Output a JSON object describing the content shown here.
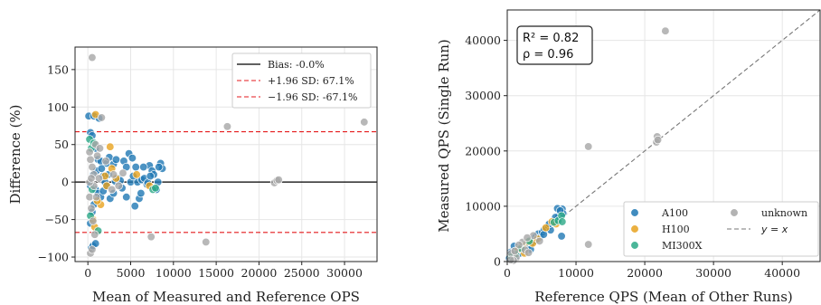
{
  "chart_data": [
    {
      "type": "scatter",
      "subtype": "bland-altman",
      "xlabel": "Mean of Measured and Reference OPS",
      "ylabel": "Difference (%)",
      "xlim": [
        -1500,
        33800
      ],
      "ylim": [
        -106,
        180
      ],
      "xticks": [
        0,
        5000,
        10000,
        15000,
        20000,
        25000,
        30000
      ],
      "yticks": [
        -100,
        -50,
        0,
        50,
        100,
        150
      ],
      "ytick_labels": [
        "−100",
        "−50",
        "0",
        "50",
        "100",
        "150"
      ],
      "grid": true,
      "legend_position": "top-right",
      "lines": [
        {
          "name": "Bias: -0.0%",
          "y": 0,
          "style": "solid",
          "color": "#000000"
        },
        {
          "name": "+1.96 SD: 67.1%",
          "y": 67.1,
          "style": "dashed",
          "color": "#e41a1c"
        },
        {
          "name": "−1.96 SD: -67.1%",
          "y": -67.1,
          "style": "dashed",
          "color": "#e41a1c"
        }
      ],
      "series": [
        {
          "group": "A100",
          "color": "#1f78b4",
          "points": [
            [
              100,
              88
            ],
            [
              700,
              88
            ],
            [
              1300,
              85
            ],
            [
              300,
              66
            ],
            [
              500,
              62
            ],
            [
              900,
              45
            ],
            [
              1200,
              30
            ],
            [
              1500,
              28
            ],
            [
              1800,
              8
            ],
            [
              2000,
              0
            ],
            [
              2200,
              25
            ],
            [
              2500,
              33
            ],
            [
              3000,
              24
            ],
            [
              3200,
              1
            ],
            [
              3500,
              5
            ],
            [
              3800,
              2
            ],
            [
              4200,
              28
            ],
            [
              4500,
              20
            ],
            [
              4800,
              38
            ],
            [
              5000,
              0
            ],
            [
              5200,
              32
            ],
            [
              5500,
              -32
            ],
            [
              5800,
              0
            ],
            [
              6000,
              -22
            ],
            [
              6300,
              3
            ],
            [
              6600,
              5
            ],
            [
              6900,
              -3
            ],
            [
              7200,
              22
            ],
            [
              7500,
              15
            ],
            [
              7700,
              10
            ],
            [
              8000,
              -10
            ],
            [
              8200,
              0
            ],
            [
              8500,
              25
            ],
            [
              8700,
              18
            ],
            [
              300,
              -5
            ],
            [
              600,
              10
            ],
            [
              900,
              -10
            ],
            [
              1200,
              -15
            ],
            [
              400,
              -88
            ],
            [
              600,
              -85
            ],
            [
              900,
              -82
            ],
            [
              300,
              -55
            ],
            [
              500,
              -40
            ],
            [
              700,
              -30
            ],
            [
              1500,
              -20
            ],
            [
              1800,
              -12
            ],
            [
              2200,
              -5
            ],
            [
              2600,
              -22
            ],
            [
              3000,
              -15
            ],
            [
              4000,
              -8
            ],
            [
              5300,
              8
            ],
            [
              6200,
              -15
            ],
            [
              7000,
              -1
            ],
            [
              1000,
              15
            ],
            [
              1600,
              18
            ],
            [
              2400,
              10
            ],
            [
              3300,
              30
            ],
            [
              4500,
              -20
            ],
            [
              5600,
              20
            ],
            [
              6500,
              20
            ],
            [
              7300,
              8
            ],
            [
              8300,
              20
            ]
          ]
        },
        {
          "group": "H100",
          "color": "#e8a21e",
          "points": [
            [
              900,
              90
            ],
            [
              2600,
              47
            ],
            [
              2800,
              18
            ],
            [
              1500,
              -30
            ],
            [
              2200,
              -5
            ],
            [
              3300,
              5
            ],
            [
              5700,
              10
            ],
            [
              7200,
              -5
            ],
            [
              800,
              -60
            ],
            [
              600,
              -50
            ],
            [
              1100,
              -25
            ],
            [
              2000,
              8
            ]
          ]
        },
        {
          "group": "MI300X",
          "color": "#2ca987",
          "points": [
            [
              200,
              57
            ],
            [
              400,
              45
            ],
            [
              700,
              52
            ],
            [
              7600,
              -10
            ],
            [
              7900,
              -8
            ],
            [
              300,
              -45
            ],
            [
              500,
              -10
            ],
            [
              1200,
              -65
            ]
          ]
        },
        {
          "group": "unknown",
          "color": "#a6a6a6",
          "points": [
            [
              500,
              166
            ],
            [
              1600,
              86
            ],
            [
              16300,
              74
            ],
            [
              32300,
              80
            ],
            [
              13800,
              -80
            ],
            [
              7400,
              -73
            ],
            [
              21800,
              -1
            ],
            [
              22100,
              2
            ],
            [
              22300,
              3
            ],
            [
              200,
              40
            ],
            [
              300,
              30
            ],
            [
              500,
              20
            ],
            [
              700,
              10
            ],
            [
              200,
              -20
            ],
            [
              400,
              -35
            ],
            [
              600,
              -52
            ],
            [
              800,
              -70
            ],
            [
              300,
              -95
            ],
            [
              500,
              -90
            ],
            [
              900,
              50
            ],
            [
              1100,
              35
            ],
            [
              1400,
              45
            ],
            [
              2100,
              28
            ],
            [
              2800,
              -10
            ],
            [
              3600,
              -5
            ],
            [
              4100,
              12
            ],
            [
              1000,
              -20
            ],
            [
              1300,
              5
            ],
            [
              700,
              -5
            ],
            [
              200,
              0
            ],
            [
              400,
              5
            ],
            [
              3000,
              10
            ]
          ]
        }
      ]
    },
    {
      "type": "scatter",
      "xlabel": "Reference QPS (Mean of Other Runs)",
      "ylabel": "Measured QPS (Single Run)",
      "xlim": [
        0,
        45500
      ],
      "ylim": [
        0,
        45500
      ],
      "xticks": [
        0,
        10000,
        20000,
        30000,
        40000
      ],
      "yticks": [
        0,
        10000,
        20000,
        30000,
        40000
      ],
      "grid": true,
      "legend_position": "bottom-right",
      "stats": {
        "r2": "R² = 0.82",
        "rho": "ρ = 0.96"
      },
      "reference_line": {
        "name": "y = x",
        "color": "#777777"
      },
      "series": [
        {
          "name": "A100",
          "color": "#1f78b4",
          "points": [
            [
              300,
              600
            ],
            [
              600,
              800
            ],
            [
              900,
              1200
            ],
            [
              1200,
              1500
            ],
            [
              1500,
              1800
            ],
            [
              1800,
              2400
            ],
            [
              2100,
              2000
            ],
            [
              2400,
              2600
            ],
            [
              2700,
              2900
            ],
            [
              3000,
              3400
            ],
            [
              3300,
              3100
            ],
            [
              3600,
              3900
            ],
            [
              3900,
              4200
            ],
            [
              4200,
              4600
            ],
            [
              4500,
              5000
            ],
            [
              4800,
              4400
            ],
            [
              5100,
              5300
            ],
            [
              5400,
              5800
            ],
            [
              5700,
              6000
            ],
            [
              6000,
              6400
            ],
            [
              6300,
              5700
            ],
            [
              6600,
              7000
            ],
            [
              6900,
              7300
            ],
            [
              7200,
              7600
            ],
            [
              7500,
              8200
            ],
            [
              7800,
              9000
            ],
            [
              8000,
              9500
            ],
            [
              8100,
              8700
            ],
            [
              7900,
              4600
            ],
            [
              1400,
              1100
            ],
            [
              2000,
              2300
            ],
            [
              2900,
              2600
            ],
            [
              3500,
              3300
            ],
            [
              4100,
              3800
            ],
            [
              5300,
              4900
            ],
            [
              6100,
              6800
            ],
            [
              7000,
              8000
            ],
            [
              800,
              400
            ],
            [
              1700,
              1400
            ],
            [
              2600,
              1800
            ],
            [
              3400,
              2200
            ],
            [
              500,
              1700
            ],
            [
              1000,
              2800
            ],
            [
              7300,
              9600
            ],
            [
              7700,
              9200
            ]
          ]
        },
        {
          "name": "H100",
          "color": "#e8a21e",
          "points": [
            [
              1000,
              1200
            ],
            [
              1600,
              2200
            ],
            [
              2200,
              2800
            ],
            [
              3000,
              3600
            ],
            [
              3700,
              3300
            ],
            [
              4400,
              4100
            ],
            [
              5600,
              6100
            ],
            [
              6500,
              7200
            ],
            [
              7100,
              6800
            ],
            [
              2500,
              1500
            ]
          ]
        },
        {
          "name": "MI300X",
          "color": "#2ca987",
          "points": [
            [
              1200,
              1300
            ],
            [
              2000,
              2400
            ],
            [
              3200,
              3700
            ],
            [
              6800,
              7100
            ],
            [
              7400,
              7400
            ],
            [
              7900,
              8300
            ],
            [
              8000,
              7200
            ],
            [
              600,
              900
            ]
          ]
        },
        {
          "name": "unknown",
          "color": "#a6a6a6",
          "points": [
            [
              23000,
              41700
            ],
            [
              11800,
              20800
            ],
            [
              21800,
              22600
            ],
            [
              21700,
              21600
            ],
            [
              21900,
              22000
            ],
            [
              11800,
              3100
            ],
            [
              600,
              1500
            ],
            [
              1300,
              700
            ],
            [
              2200,
              3500
            ],
            [
              2600,
              2100
            ],
            [
              3100,
              1600
            ],
            [
              3800,
              4700
            ],
            [
              4700,
              3700
            ],
            [
              900,
              200
            ],
            [
              1700,
              3000
            ],
            [
              500,
              300
            ],
            [
              1100,
              1900
            ],
            [
              2900,
              4300
            ]
          ]
        }
      ],
      "legend": [
        {
          "label": "A100",
          "kind": "dot",
          "color": "#1f78b4"
        },
        {
          "label": "unknown",
          "kind": "dot",
          "color": "#a6a6a6"
        },
        {
          "label": "H100",
          "kind": "dot",
          "color": "#e8a21e"
        },
        {
          "label": "y = x",
          "kind": "dashed-line",
          "color": "#777777"
        },
        {
          "label": "MI300X",
          "kind": "dot",
          "color": "#2ca987"
        }
      ]
    }
  ]
}
